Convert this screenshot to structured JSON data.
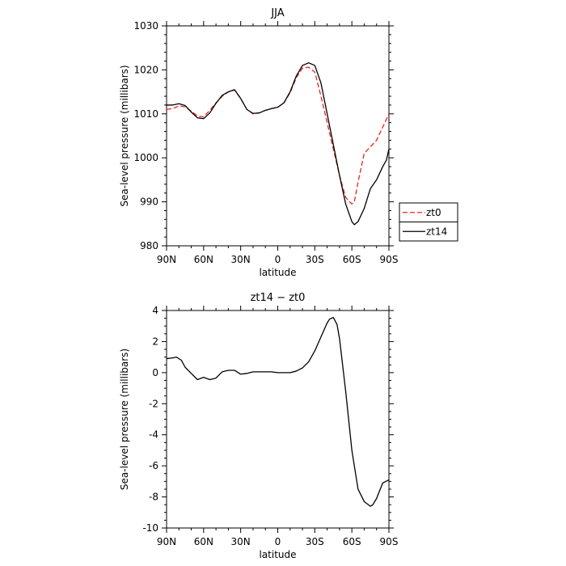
{
  "chart_data": [
    {
      "type": "line",
      "title": "JJA",
      "xlabel": "latitude",
      "ylabel": "Sea-level pressure (millibars)",
      "xlim": [
        90,
        -90
      ],
      "ylim": [
        980,
        1030
      ],
      "xticks": [
        {
          "value": 90,
          "label": "90N"
        },
        {
          "value": 60,
          "label": "60N"
        },
        {
          "value": 30,
          "label": "30N"
        },
        {
          "value": 0,
          "label": "0"
        },
        {
          "value": -30,
          "label": "30S"
        },
        {
          "value": -60,
          "label": "60S"
        },
        {
          "value": -90,
          "label": "90S"
        }
      ],
      "yticks": [
        980,
        990,
        1000,
        1010,
        1020,
        1030
      ],
      "legend": {
        "placement": "right, outside plot"
      },
      "series": [
        {
          "name": "zt0",
          "color": "#e8261f",
          "dash": "dashed",
          "x": [
            90,
            85,
            80,
            75,
            70,
            65,
            60,
            55,
            50,
            45,
            40,
            35,
            30,
            25,
            20,
            15,
            10,
            5,
            0,
            -5,
            -10,
            -15,
            -20,
            -25,
            -30,
            -35,
            -40,
            -45,
            -50,
            -55,
            -60,
            -62,
            -65,
            -70,
            -75,
            -80,
            -85,
            -90
          ],
          "y": [
            1011,
            1011.2,
            1011.8,
            1011.6,
            1010.6,
            1009.5,
            1009.3,
            1010.8,
            1012.5,
            1014,
            1015,
            1015.4,
            1013.5,
            1011,
            1010,
            1010.2,
            1010.8,
            1011.2,
            1011.5,
            1012.5,
            1014.8,
            1018.2,
            1020.4,
            1020.6,
            1019.5,
            1014,
            1008,
            1002,
            996,
            991,
            989.5,
            990,
            994.5,
            1001,
            1002.5,
            1004,
            1007,
            1010
          ]
        },
        {
          "name": "zt14",
          "color": "#000000",
          "dash": "solid",
          "x": [
            90,
            85,
            80,
            75,
            70,
            65,
            60,
            55,
            50,
            45,
            40,
            35,
            30,
            25,
            20,
            15,
            10,
            5,
            0,
            -5,
            -10,
            -15,
            -20,
            -25,
            -30,
            -35,
            -40,
            -45,
            -50,
            -55,
            -60,
            -62,
            -65,
            -70,
            -75,
            -80,
            -85,
            -88,
            -90
          ],
          "y": [
            1012,
            1012,
            1012.3,
            1011.9,
            1010.4,
            1009.1,
            1008.9,
            1010.2,
            1012.4,
            1014.2,
            1015,
            1015.5,
            1013.5,
            1011,
            1010.1,
            1010.2,
            1010.8,
            1011.2,
            1011.5,
            1012.5,
            1015,
            1018.6,
            1021,
            1021.6,
            1021,
            1017,
            1010,
            1003,
            996,
            989.5,
            985.5,
            984.8,
            985.5,
            988.5,
            993,
            995,
            998,
            999.5,
            1002
          ]
        }
      ]
    },
    {
      "type": "line",
      "title": "zt14 − zt0",
      "xlabel": "latitude",
      "ylabel": "Sea-level pressure (millibars)",
      "xlim": [
        90,
        -90
      ],
      "ylim": [
        -10,
        4
      ],
      "xticks": [
        {
          "value": 90,
          "label": "90N"
        },
        {
          "value": 60,
          "label": "60N"
        },
        {
          "value": 30,
          "label": "30N"
        },
        {
          "value": 0,
          "label": "0"
        },
        {
          "value": -30,
          "label": "30S"
        },
        {
          "value": -60,
          "label": "60S"
        },
        {
          "value": -90,
          "label": "90S"
        }
      ],
      "yticks": [
        -10,
        -8,
        -6,
        -4,
        -2,
        0,
        2,
        4
      ],
      "series": [
        {
          "color": "#000000",
          "dash": "solid",
          "x": [
            90,
            85,
            82,
            78,
            75,
            70,
            65,
            60,
            55,
            50,
            45,
            40,
            35,
            30,
            25,
            20,
            15,
            10,
            5,
            0,
            -5,
            -10,
            -15,
            -20,
            -25,
            -30,
            -35,
            -40,
            -42,
            -45,
            -48,
            -50,
            -55,
            -60,
            -65,
            -70,
            -75,
            -77,
            -80,
            -85,
            -90
          ],
          "y": [
            0.9,
            0.95,
            1.0,
            0.8,
            0.35,
            -0.05,
            -0.45,
            -0.3,
            -0.45,
            -0.35,
            0.05,
            0.15,
            0.15,
            -0.1,
            -0.05,
            0.05,
            0.05,
            0.05,
            0.05,
            0.0,
            0.0,
            0.0,
            0.1,
            0.3,
            0.7,
            1.4,
            2.3,
            3.2,
            3.45,
            3.55,
            3.1,
            2.2,
            -1.2,
            -5.0,
            -7.5,
            -8.3,
            -8.6,
            -8.5,
            -8.1,
            -7.1,
            -6.9
          ]
        }
      ]
    }
  ]
}
